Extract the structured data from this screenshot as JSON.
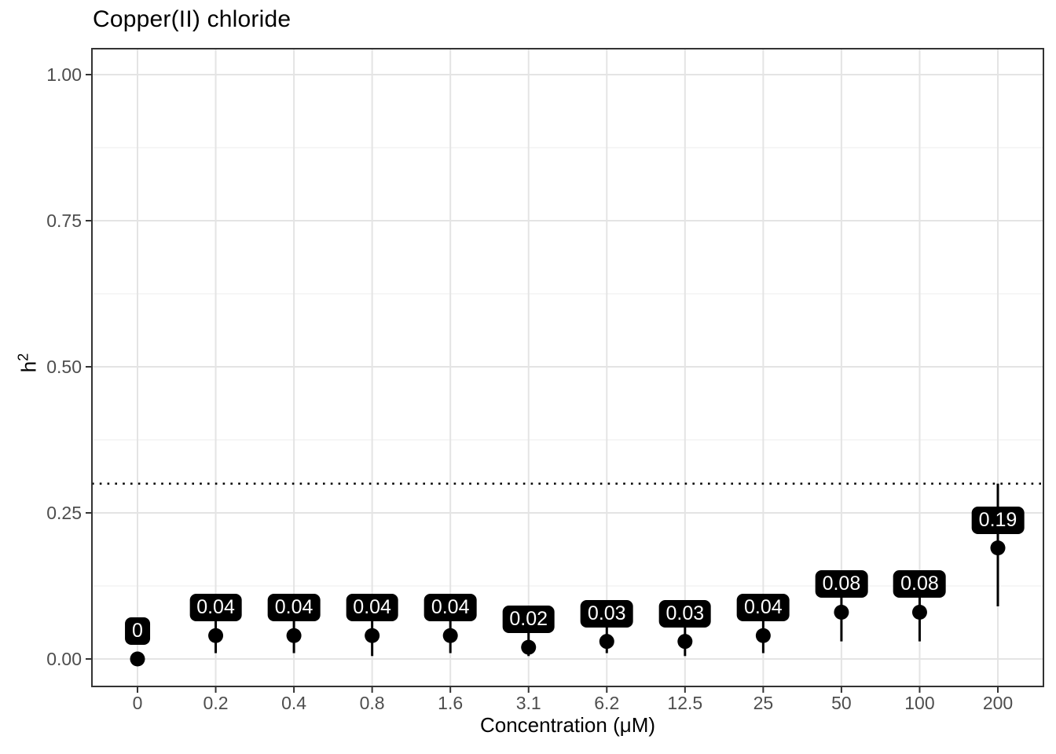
{
  "page": {
    "background": "#ffffff"
  },
  "chart_data": {
    "type": "scatter",
    "title": "Copper(II) chloride",
    "xlabel": "Concentration (μM)",
    "ylabel": "h²",
    "ylabel_base": "h",
    "ylabel_sup": "2",
    "categories": [
      "0",
      "0.2",
      "0.4",
      "0.8",
      "1.6",
      "3.1",
      "6.2",
      "12.5",
      "25",
      "50",
      "100",
      "200"
    ],
    "values": [
      0,
      0.04,
      0.04,
      0.04,
      0.04,
      0.02,
      0.03,
      0.03,
      0.04,
      0.08,
      0.08,
      0.19
    ],
    "point_labels": [
      "0",
      "0.04",
      "0.04",
      "0.04",
      "0.04",
      "0.02",
      "0.03",
      "0.03",
      "0.04",
      "0.08",
      "0.08",
      "0.19"
    ],
    "error_low": [
      0,
      0.01,
      0.01,
      0.005,
      0.01,
      0.005,
      0.01,
      0.005,
      0.01,
      0.03,
      0.03,
      0.09
    ],
    "error_high": [
      0,
      0.07,
      0.07,
      0.065,
      0.07,
      0.05,
      0.055,
      0.055,
      0.07,
      0.13,
      0.13,
      0.3
    ],
    "reference_line": {
      "y": 0.3,
      "style": "dotted"
    },
    "yticks": [
      0,
      0.25,
      0.5,
      0.75,
      1.0
    ],
    "ytick_labels": [
      "0.00",
      "0.25",
      "0.50",
      "0.75",
      "1.00"
    ],
    "yticks_minor": [
      0.125,
      0.375,
      0.625,
      0.875
    ],
    "ylim": [
      0,
      1
    ],
    "grid": {
      "major": true,
      "minor_horizontal": true,
      "minor_vertical": false
    },
    "legend": "none",
    "colors": {
      "point": "#000000",
      "error_bar": "#000000",
      "label_bg": "#000000",
      "label_text": "#ffffff",
      "grid_major": "#e4e4e4",
      "grid_minor": "#f0f0f0",
      "panel_border": "#333333",
      "axis_tick": "#333333",
      "tick_label": "#4d4d4d",
      "reference_line": "#000000",
      "background": "#ffffff",
      "title": "#000000"
    }
  }
}
